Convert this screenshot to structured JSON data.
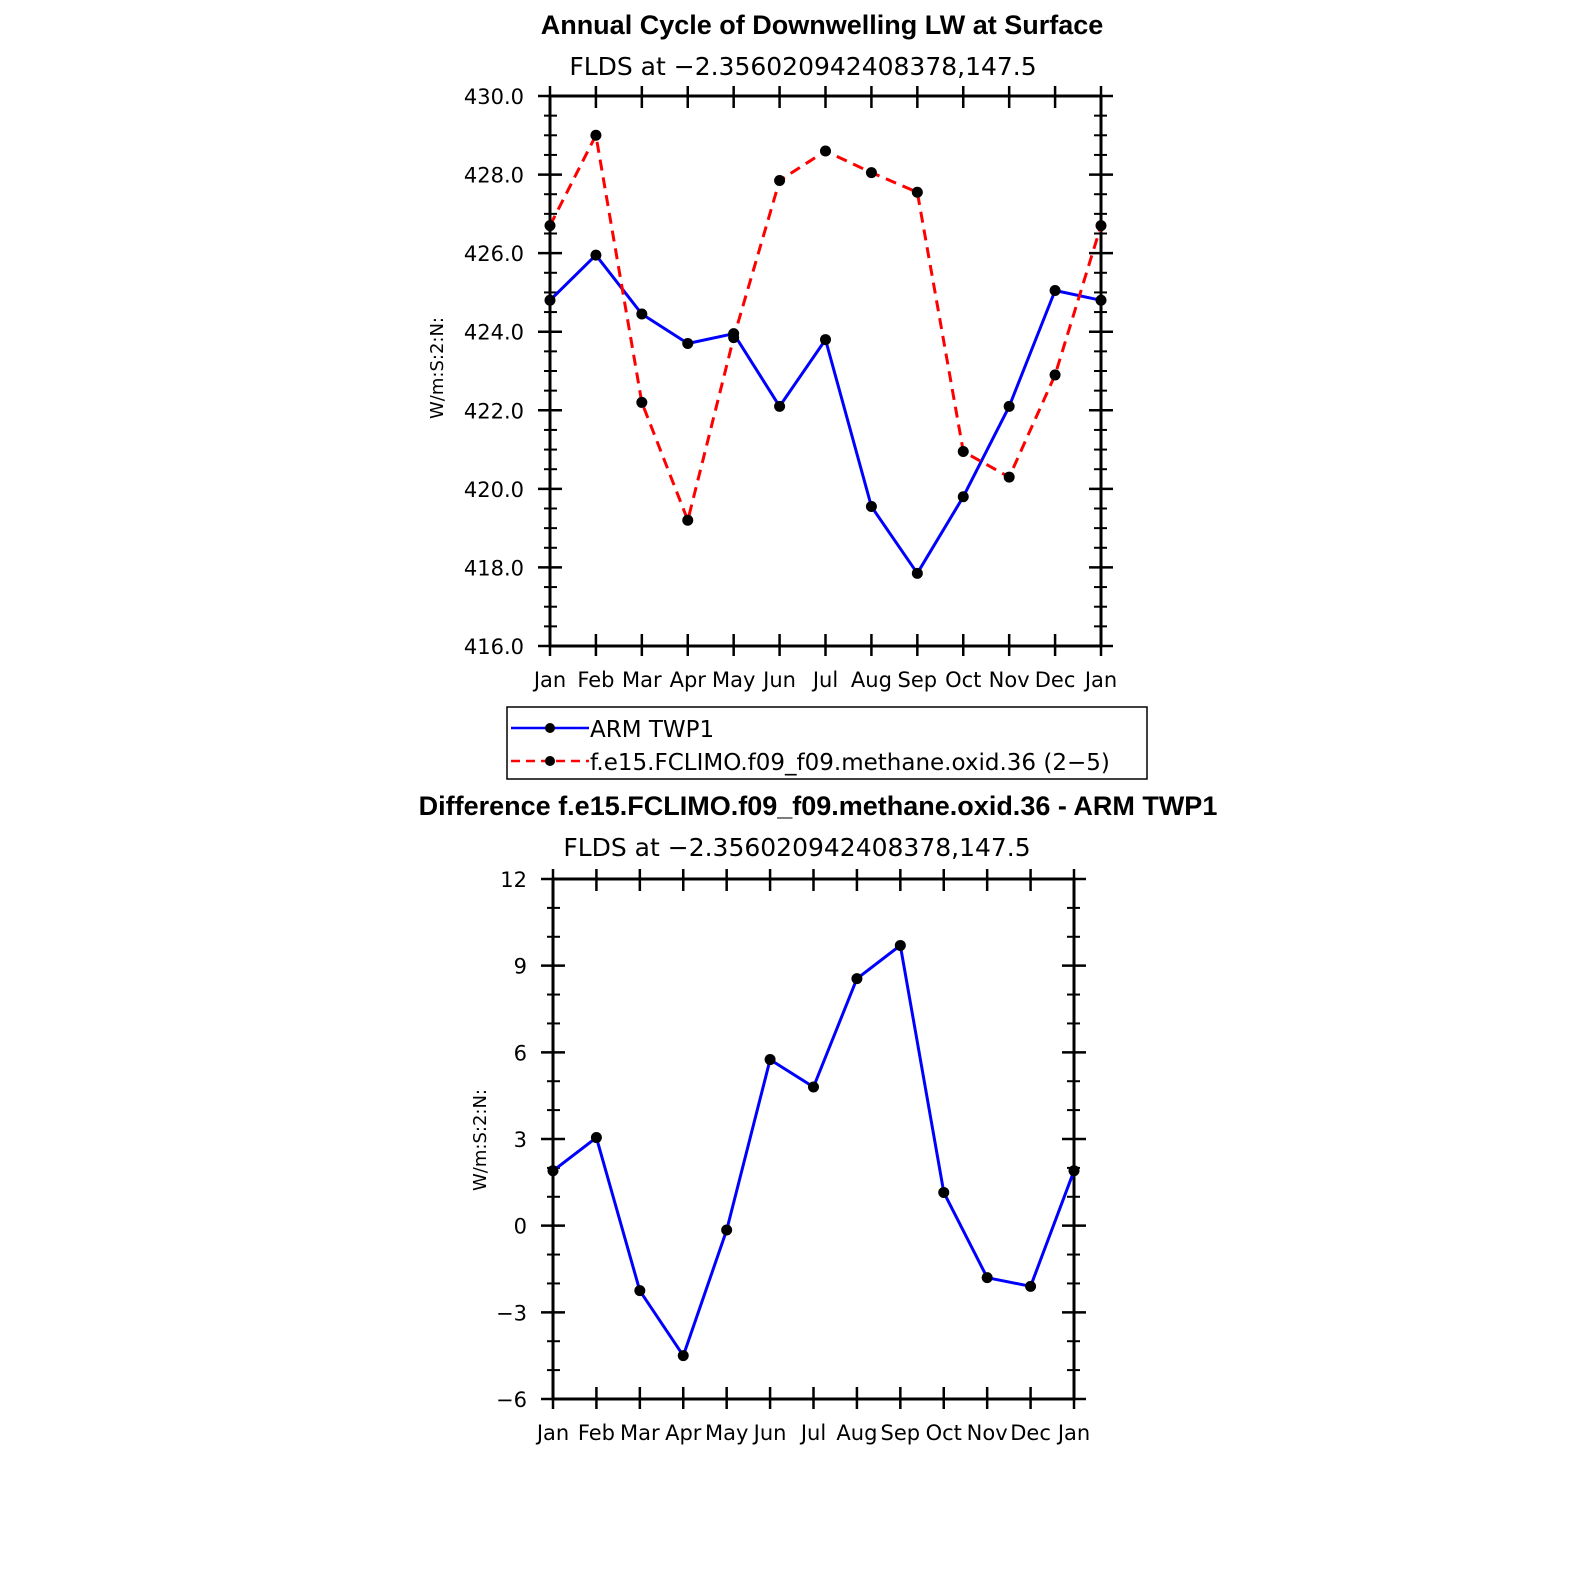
{
  "chart_data": [
    {
      "type": "line",
      "title": "Annual Cycle of Downwelling LW at Surface",
      "subtitle": "FLDS at −2.356020942408378,147.5",
      "ylabel": "W/m:S:2:N:",
      "xlabel": "",
      "categories": [
        "Jan",
        "Feb",
        "Mar",
        "Apr",
        "May",
        "Jun",
        "Jul",
        "Aug",
        "Sep",
        "Oct",
        "Nov",
        "Dec",
        "Jan"
      ],
      "ylim": [
        416.0,
        430.0
      ],
      "yticks": [
        "416.0",
        "418.0",
        "420.0",
        "422.0",
        "424.0",
        "426.0",
        "428.0",
        "430.0"
      ],
      "grid": false,
      "legend_position": "bottom",
      "series": [
        {
          "name": "ARM TWP1",
          "color": "#0000ff",
          "dashed": false,
          "values": [
            424.8,
            425.95,
            424.45,
            423.7,
            423.95,
            422.1,
            423.8,
            419.55,
            417.85,
            419.8,
            422.1,
            425.05,
            424.8
          ]
        },
        {
          "name": "f.e15.FCLIMO.f09_f09.methane.oxid.36 (2−5)",
          "color": "#ff0000",
          "dashed": true,
          "values": [
            426.7,
            429.0,
            422.2,
            419.2,
            423.85,
            427.85,
            428.6,
            428.05,
            427.55,
            420.95,
            420.3,
            422.9,
            426.7
          ]
        }
      ]
    },
    {
      "type": "line",
      "title": "Difference f.e15.FCLIMO.f09_f09.methane.oxid.36 - ARM TWP1",
      "subtitle": "FLDS at −2.356020942408378,147.5",
      "ylabel": "W/m:S:2:N:",
      "xlabel": "",
      "categories": [
        "Jan",
        "Feb",
        "Mar",
        "Apr",
        "May",
        "Jun",
        "Jul",
        "Aug",
        "Sep",
        "Oct",
        "Nov",
        "Dec",
        "Jan"
      ],
      "ylim": [
        -6,
        12
      ],
      "yticks": [
        "−6",
        "−3",
        "0",
        "3",
        "6",
        "9",
        "12"
      ],
      "grid": false,
      "series": [
        {
          "color": "#0000ff",
          "dashed": false,
          "values": [
            1.9,
            3.05,
            -2.25,
            -4.5,
            -0.15,
            5.75,
            4.8,
            8.55,
            9.7,
            1.15,
            -1.8,
            -2.1,
            1.9
          ]
        }
      ]
    }
  ]
}
